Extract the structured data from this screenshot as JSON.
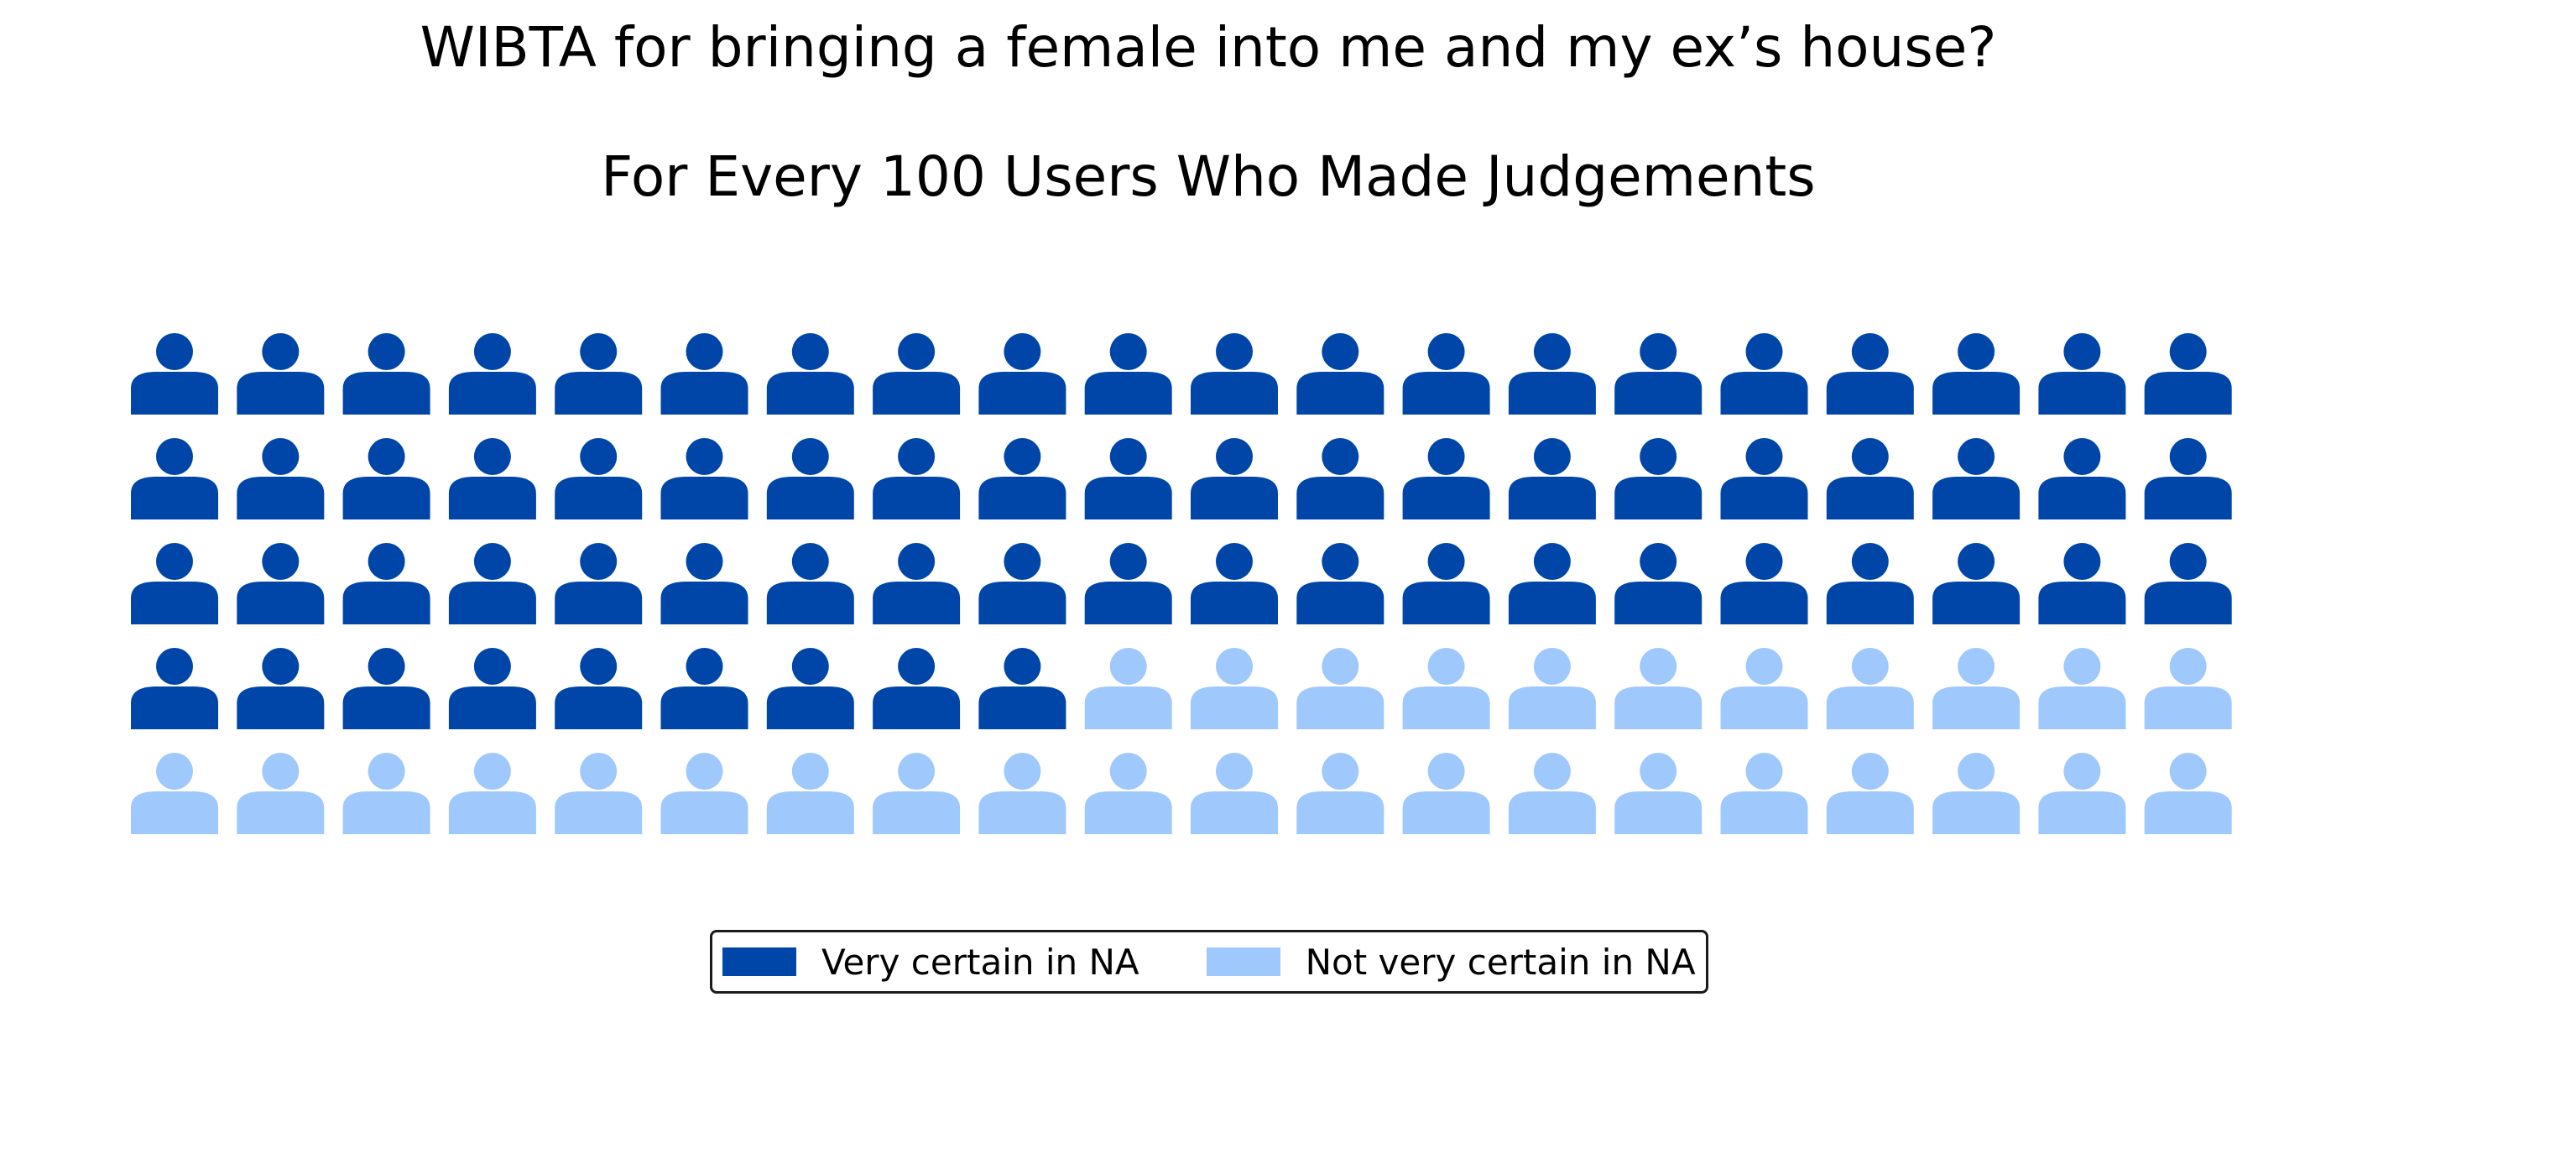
{
  "chart_data": {
    "type": "waffle",
    "title": "WIBTA for bringing a female into me and my ex’s house?",
    "subtitle": "For Every 100 Users Who Made Judgements",
    "grid": {
      "rows": 5,
      "columns": 20
    },
    "icon": "person-icon",
    "categories": [
      "Very certain in NA",
      "Not very certain in NA"
    ],
    "values": [
      69,
      31
    ],
    "colors": [
      "#0046A8",
      "#9FC8FD"
    ],
    "legend_position": "bottom-center"
  }
}
